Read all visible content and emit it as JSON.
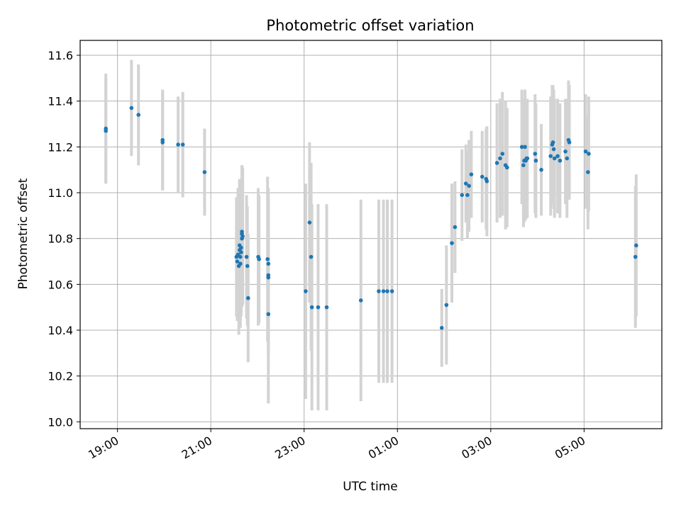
{
  "chart_data": {
    "type": "scatter",
    "title": "Photometric offset variation",
    "xlabel": "UTC time",
    "ylabel": "Photometric offset",
    "x_axis": {
      "kind": "time",
      "tick_labels": [
        "19:00",
        "21:00",
        "23:00",
        "01:00",
        "03:00",
        "05:00"
      ],
      "tick_times": [
        "19:00",
        "21:00",
        "23:00",
        "01:00",
        "03:00",
        "05:00"
      ],
      "range": [
        "18:12",
        "06:40"
      ]
    },
    "y_axis": {
      "ticks": [
        10.0,
        10.2,
        10.4,
        10.6,
        10.8,
        11.0,
        11.2,
        11.4,
        11.6
      ],
      "tick_labels": [
        "10.0",
        "10.2",
        "10.4",
        "10.6",
        "10.8",
        "11.0",
        "11.2",
        "11.4",
        "11.6"
      ],
      "ylim": [
        9.97,
        11.665
      ]
    },
    "grid": true,
    "colors": {
      "points": "#1f77b4",
      "errorbars": "#d3d3d3",
      "grid": "#b0b0b0",
      "axes": "#000000"
    },
    "series": [
      {
        "points": [
          {
            "t": "18:45",
            "y": 11.28,
            "err": 0.24
          },
          {
            "t": "18:45",
            "y": 11.27,
            "err": 0.23
          },
          {
            "t": "19:18",
            "y": 11.37,
            "err": 0.21
          },
          {
            "t": "19:27",
            "y": 11.34,
            "err": 0.22
          },
          {
            "t": "19:58",
            "y": 11.23,
            "err": 0.22
          },
          {
            "t": "19:58",
            "y": 11.22,
            "err": 0.21
          },
          {
            "t": "20:18",
            "y": 11.21,
            "err": 0.21
          },
          {
            "t": "20:24",
            "y": 11.21,
            "err": 0.23
          },
          {
            "t": "20:52",
            "y": 11.09,
            "err": 0.19
          },
          {
            "t": "21:33",
            "y": 10.72,
            "err": 0.26
          },
          {
            "t": "21:34",
            "y": 10.7,
            "err": 0.26
          },
          {
            "t": "21:35",
            "y": 10.73,
            "err": 0.29
          },
          {
            "t": "21:36",
            "y": 10.68,
            "err": 0.3
          },
          {
            "t": "21:37",
            "y": 10.75,
            "err": 0.3
          },
          {
            "t": "21:37",
            "y": 10.77,
            "err": 0.29
          },
          {
            "t": "21:38",
            "y": 10.69,
            "err": 0.28
          },
          {
            "t": "21:38",
            "y": 10.72,
            "err": 0.28
          },
          {
            "t": "21:39",
            "y": 10.74,
            "err": 0.27
          },
          {
            "t": "21:39",
            "y": 10.76,
            "err": 0.3
          },
          {
            "t": "21:40",
            "y": 10.8,
            "err": 0.3
          },
          {
            "t": "21:40",
            "y": 10.83,
            "err": 0.29
          },
          {
            "t": "21:40",
            "y": 10.82,
            "err": 0.3
          },
          {
            "t": "21:41",
            "y": 10.81,
            "err": 0.3
          },
          {
            "t": "21:46",
            "y": 10.72,
            "err": 0.27
          },
          {
            "t": "21:47",
            "y": 10.68,
            "err": 0.26
          },
          {
            "t": "21:48",
            "y": 10.54,
            "err": 0.28
          },
          {
            "t": "22:01",
            "y": 10.72,
            "err": 0.3
          },
          {
            "t": "22:02",
            "y": 10.71,
            "err": 0.28
          },
          {
            "t": "22:13",
            "y": 10.71,
            "err": 0.36
          },
          {
            "t": "22:14",
            "y": 10.64,
            "err": 0.34
          },
          {
            "t": "22:14",
            "y": 10.63,
            "err": 0.34
          },
          {
            "t": "22:14",
            "y": 10.47,
            "err": 0.39
          },
          {
            "t": "22:14",
            "y": 10.69,
            "err": 0.33
          },
          {
            "t": "23:02",
            "y": 10.57,
            "err": 0.47
          },
          {
            "t": "23:07",
            "y": 10.87,
            "err": 0.35
          },
          {
            "t": "23:09",
            "y": 10.72,
            "err": 0.41
          },
          {
            "t": "23:10",
            "y": 10.5,
            "err": 0.45
          },
          {
            "t": "23:18",
            "y": 10.5,
            "err": 0.45
          },
          {
            "t": "23:29",
            "y": 10.5,
            "err": 0.45
          },
          {
            "t": "00:13",
            "y": 10.53,
            "err": 0.44
          },
          {
            "t": "00:36",
            "y": 10.57,
            "err": 0.4
          },
          {
            "t": "00:42",
            "y": 10.57,
            "err": 0.4
          },
          {
            "t": "00:47",
            "y": 10.57,
            "err": 0.4
          },
          {
            "t": "00:53",
            "y": 10.57,
            "err": 0.4
          },
          {
            "t": "01:57",
            "y": 10.41,
            "err": 0.17
          },
          {
            "t": "02:03",
            "y": 10.51,
            "err": 0.26
          },
          {
            "t": "02:10",
            "y": 10.78,
            "err": 0.26
          },
          {
            "t": "02:14",
            "y": 10.85,
            "err": 0.2
          },
          {
            "t": "02:23",
            "y": 10.99,
            "err": 0.2
          },
          {
            "t": "02:28",
            "y": 11.04,
            "err": 0.17
          },
          {
            "t": "02:30",
            "y": 10.99,
            "err": 0.19
          },
          {
            "t": "02:32",
            "y": 11.03,
            "err": 0.2
          },
          {
            "t": "02:35",
            "y": 11.08,
            "err": 0.19
          },
          {
            "t": "02:49",
            "y": 11.07,
            "err": 0.2
          },
          {
            "t": "02:54",
            "y": 11.06,
            "err": 0.22
          },
          {
            "t": "02:55",
            "y": 11.05,
            "err": 0.24
          },
          {
            "t": "03:08",
            "y": 11.13,
            "err": 0.26
          },
          {
            "t": "03:12",
            "y": 11.15,
            "err": 0.26
          },
          {
            "t": "03:15",
            "y": 11.17,
            "err": 0.27
          },
          {
            "t": "03:19",
            "y": 11.12,
            "err": 0.28
          },
          {
            "t": "03:21",
            "y": 11.11,
            "err": 0.26
          },
          {
            "t": "03:40",
            "y": 11.2,
            "err": 0.25
          },
          {
            "t": "03:42",
            "y": 11.12,
            "err": 0.27
          },
          {
            "t": "03:43",
            "y": 11.14,
            "err": 0.27
          },
          {
            "t": "03:44",
            "y": 11.2,
            "err": 0.25
          },
          {
            "t": "03:45",
            "y": 11.14,
            "err": 0.26
          },
          {
            "t": "03:46",
            "y": 11.15,
            "err": 0.26
          },
          {
            "t": "03:47",
            "y": 11.15,
            "err": 0.26
          },
          {
            "t": "03:57",
            "y": 11.17,
            "err": 0.26
          },
          {
            "t": "03:58",
            "y": 11.14,
            "err": 0.25
          },
          {
            "t": "04:05",
            "y": 11.1,
            "err": 0.2
          },
          {
            "t": "04:17",
            "y": 11.16,
            "err": 0.26
          },
          {
            "t": "04:19",
            "y": 11.21,
            "err": 0.26
          },
          {
            "t": "04:20",
            "y": 11.22,
            "err": 0.25
          },
          {
            "t": "04:21",
            "y": 11.19,
            "err": 0.26
          },
          {
            "t": "04:22",
            "y": 11.15,
            "err": 0.26
          },
          {
            "t": "04:26",
            "y": 11.16,
            "err": 0.25
          },
          {
            "t": "04:29",
            "y": 11.14,
            "err": 0.25
          },
          {
            "t": "04:36",
            "y": 11.18,
            "err": 0.23
          },
          {
            "t": "04:38",
            "y": 11.15,
            "err": 0.26
          },
          {
            "t": "04:40",
            "y": 11.23,
            "err": 0.26
          },
          {
            "t": "04:41",
            "y": 11.22,
            "err": 0.25
          },
          {
            "t": "05:02",
            "y": 11.18,
            "err": 0.25
          },
          {
            "t": "05:05",
            "y": 11.09,
            "err": 0.25
          },
          {
            "t": "05:06",
            "y": 11.17,
            "err": 0.25
          },
          {
            "t": "06:06",
            "y": 10.72,
            "err": 0.31
          },
          {
            "t": "06:07",
            "y": 10.77,
            "err": 0.31
          }
        ]
      }
    ]
  }
}
